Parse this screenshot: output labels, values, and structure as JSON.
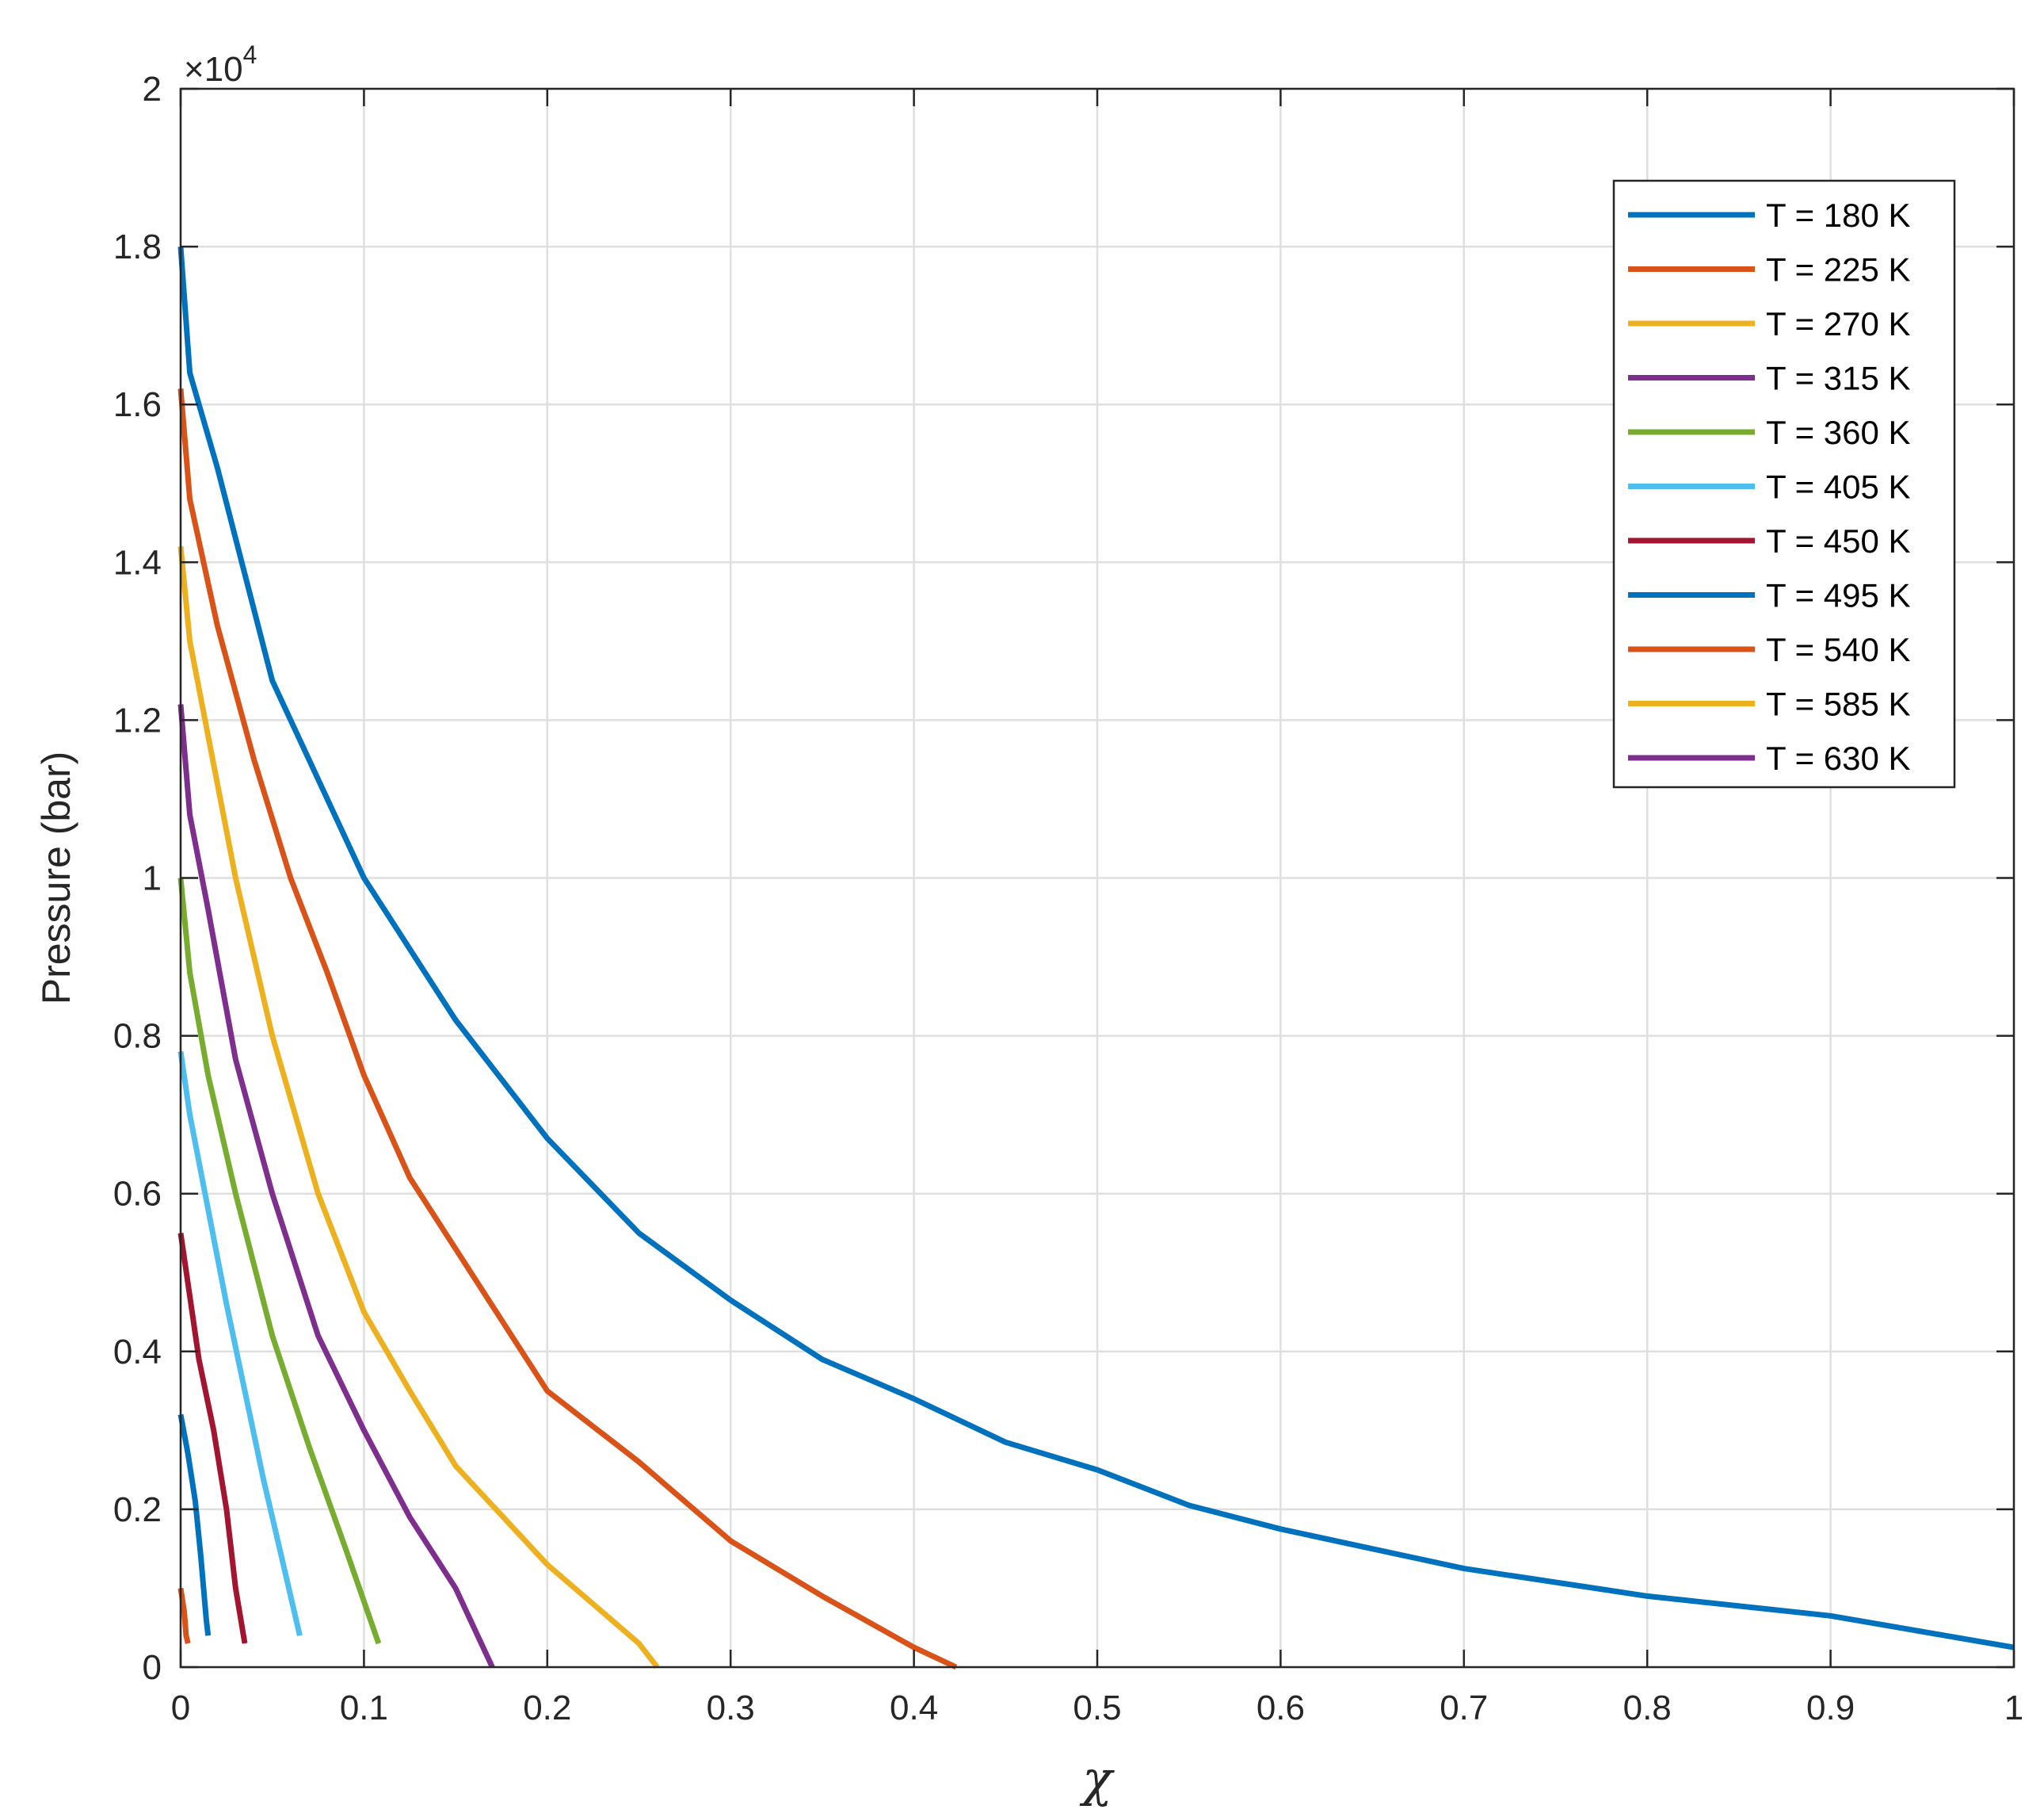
{
  "chart_data": {
    "type": "line",
    "xlabel": "χ",
    "ylabel": "Pressure (bar)",
    "xlim": [
      0,
      1
    ],
    "ylim": [
      0,
      20000
    ],
    "y_multiplier_label": {
      "base": "×10",
      "exponent": "4"
    },
    "x_ticks": [
      0,
      0.1,
      0.2,
      0.3,
      0.4,
      0.5,
      0.6,
      0.7,
      0.8,
      0.9,
      1
    ],
    "x_tick_labels": [
      "0",
      "0.1",
      "0.2",
      "0.3",
      "0.4",
      "0.5",
      "0.6",
      "0.7",
      "0.8",
      "0.9",
      "1"
    ],
    "y_ticks": [
      0,
      2000,
      4000,
      6000,
      8000,
      10000,
      12000,
      14000,
      16000,
      18000,
      20000
    ],
    "y_tick_labels": [
      "0",
      "0.2",
      "0.4",
      "0.6",
      "0.8",
      "1",
      "1.2",
      "1.4",
      "1.6",
      "1.8",
      "2"
    ],
    "grid": true,
    "legend_position": "top-right",
    "series": [
      {
        "name": "T = 180 K",
        "color": "#0072BD",
        "points": [
          [
            0,
            18000
          ],
          [
            0.005,
            16400
          ],
          [
            0.02,
            15200
          ],
          [
            0.05,
            12500
          ],
          [
            0.1,
            10000
          ],
          [
            0.15,
            8200
          ],
          [
            0.2,
            6700
          ],
          [
            0.25,
            5500
          ],
          [
            0.3,
            4650
          ],
          [
            0.35,
            3900
          ],
          [
            0.4,
            3400
          ],
          [
            0.45,
            2850
          ],
          [
            0.5,
            2500
          ],
          [
            0.55,
            2050
          ],
          [
            0.6,
            1750
          ],
          [
            0.7,
            1250
          ],
          [
            0.8,
            900
          ],
          [
            0.9,
            650
          ],
          [
            1,
            250
          ]
        ]
      },
      {
        "name": "T = 225 K",
        "color": "#D95319",
        "points": [
          [
            0,
            16200
          ],
          [
            0.005,
            14800
          ],
          [
            0.02,
            13200
          ],
          [
            0.04,
            11500
          ],
          [
            0.06,
            10000
          ],
          [
            0.08,
            8800
          ],
          [
            0.1,
            7500
          ],
          [
            0.125,
            6200
          ],
          [
            0.15,
            5300
          ],
          [
            0.2,
            3500
          ],
          [
            0.25,
            2600
          ],
          [
            0.3,
            1600
          ],
          [
            0.35,
            900
          ],
          [
            0.4,
            250
          ],
          [
            0.423,
            0
          ]
        ]
      },
      {
        "name": "T = 270 K",
        "color": "#EDB120",
        "points": [
          [
            0,
            14200
          ],
          [
            0.005,
            13000
          ],
          [
            0.015,
            11800
          ],
          [
            0.03,
            10000
          ],
          [
            0.05,
            8000
          ],
          [
            0.075,
            6000
          ],
          [
            0.1,
            4500
          ],
          [
            0.125,
            3500
          ],
          [
            0.15,
            2550
          ],
          [
            0.2,
            1300
          ],
          [
            0.25,
            300
          ],
          [
            0.26,
            0
          ]
        ]
      },
      {
        "name": "T = 315 K",
        "color": "#7E2F8E",
        "points": [
          [
            0,
            12200
          ],
          [
            0.005,
            10800
          ],
          [
            0.015,
            9600
          ],
          [
            0.03,
            7700
          ],
          [
            0.05,
            6000
          ],
          [
            0.075,
            4200
          ],
          [
            0.1,
            3000
          ],
          [
            0.125,
            1900
          ],
          [
            0.15,
            1000
          ],
          [
            0.17,
            0
          ]
        ]
      },
      {
        "name": "T = 360 K",
        "color": "#77AC30",
        "points": [
          [
            0,
            10000
          ],
          [
            0.005,
            8800
          ],
          [
            0.015,
            7500
          ],
          [
            0.03,
            6000
          ],
          [
            0.05,
            4200
          ],
          [
            0.07,
            2800
          ],
          [
            0.09,
            1500
          ],
          [
            0.108,
            300
          ]
        ]
      },
      {
        "name": "T = 405 K",
        "color": "#4DBEEE",
        "points": [
          [
            0,
            7800
          ],
          [
            0.005,
            7000
          ],
          [
            0.015,
            5800
          ],
          [
            0.025,
            4600
          ],
          [
            0.035,
            3500
          ],
          [
            0.045,
            2400
          ],
          [
            0.055,
            1400
          ],
          [
            0.065,
            400
          ]
        ]
      },
      {
        "name": "T = 450 K",
        "color": "#A2142F",
        "points": [
          [
            0,
            5500
          ],
          [
            0.005,
            4700
          ],
          [
            0.01,
            3900
          ],
          [
            0.018,
            3000
          ],
          [
            0.025,
            2000
          ],
          [
            0.03,
            1000
          ],
          [
            0.035,
            300
          ]
        ]
      },
      {
        "name": "T = 495 K",
        "color": "#0072BD",
        "points": [
          [
            0,
            3200
          ],
          [
            0.004,
            2700
          ],
          [
            0.008,
            2100
          ],
          [
            0.011,
            1400
          ],
          [
            0.014,
            600
          ],
          [
            0.015,
            400
          ]
        ]
      },
      {
        "name": "T = 540 K",
        "color": "#D95319",
        "points": [
          [
            0,
            1000
          ],
          [
            0.002,
            700
          ],
          [
            0.003,
            400
          ],
          [
            0.004,
            300
          ]
        ]
      },
      {
        "name": "T = 585 K",
        "color": "#EDB120",
        "points": []
      },
      {
        "name": "T = 630 K",
        "color": "#7E2F8E",
        "points": []
      }
    ]
  }
}
